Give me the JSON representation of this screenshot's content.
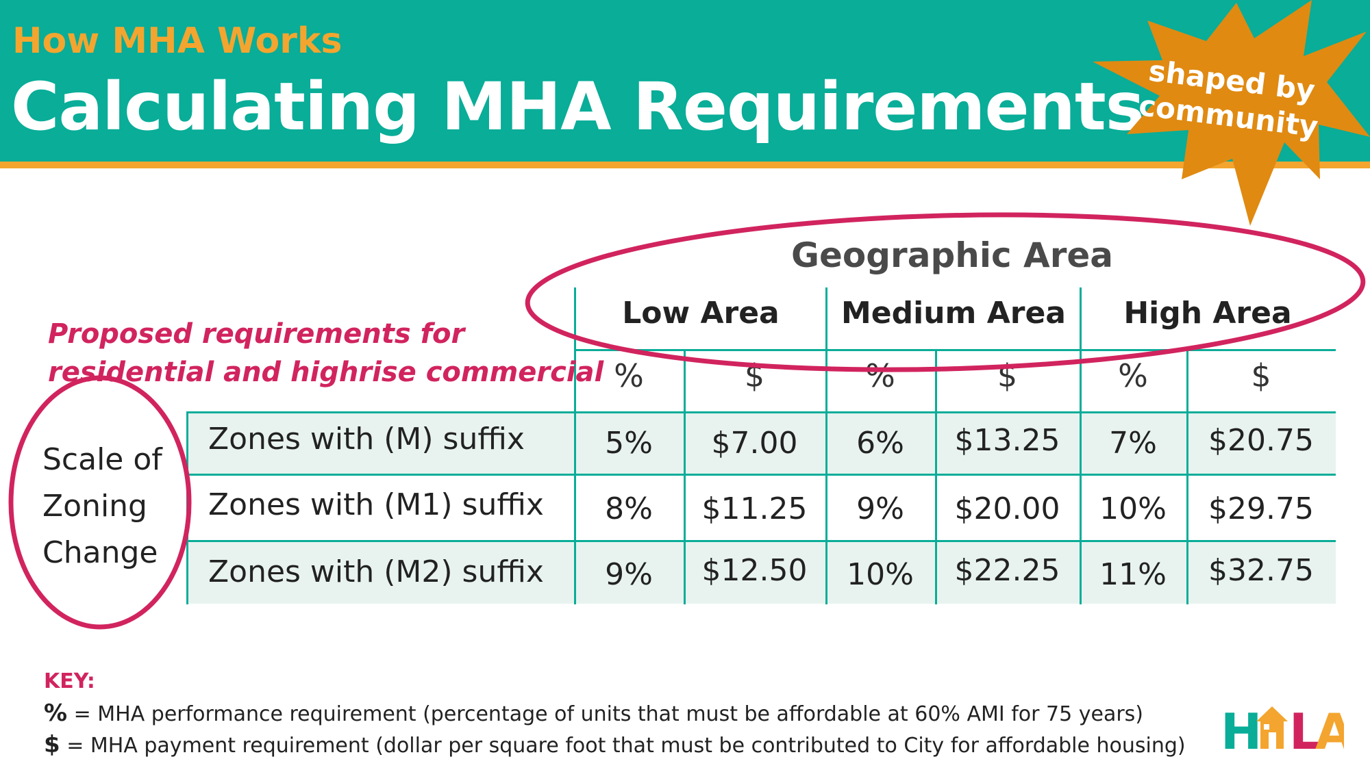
{
  "header": {
    "kicker": "How MHA Works",
    "title": "Calculating MHA Requirements",
    "badge_line1": "shaped by",
    "badge_line2": "community"
  },
  "table": {
    "geographic_label": "Geographic Area",
    "areas": [
      "Low Area",
      "Medium Area",
      "High Area"
    ],
    "sub_headers": [
      "%",
      "$",
      "%",
      "$",
      "%",
      "$"
    ],
    "proposed_line1": "Proposed requirements for",
    "proposed_line2": "residential and highrise commercial",
    "scale_label": [
      "Scale of",
      "Zoning",
      "Change"
    ],
    "rows": [
      {
        "zone": "Zones with (M) suffix",
        "values": [
          "5%",
          "$7.00",
          "6%",
          "$13.25",
          "7%",
          "$20.75"
        ]
      },
      {
        "zone": "Zones with (M1) suffix",
        "values": [
          "8%",
          "$11.25",
          "9%",
          "$20.00",
          "10%",
          "$29.75"
        ]
      },
      {
        "zone": "Zones with (M2) suffix",
        "values": [
          "9%",
          "$12.50",
          "10%",
          "$22.25",
          "11%",
          "$32.75"
        ]
      }
    ]
  },
  "key": {
    "label": "KEY:",
    "pct_symbol": "%",
    "pct_text": " = MHA performance requirement (percentage of units that must be affordable at 60% AMI for 75 years)",
    "usd_symbol": "$",
    "usd_text": " = MHA payment requirement (dollar per square foot that must be contributed to City for affordable housing)"
  },
  "logo": {
    "text": "HALA",
    "name": "hala-logo"
  },
  "colors": {
    "teal": "#09ad98",
    "orange": "#f3a52f",
    "star": "#e08a12",
    "magenta": "#d1245e",
    "row_fill": "#e8f3ef"
  }
}
